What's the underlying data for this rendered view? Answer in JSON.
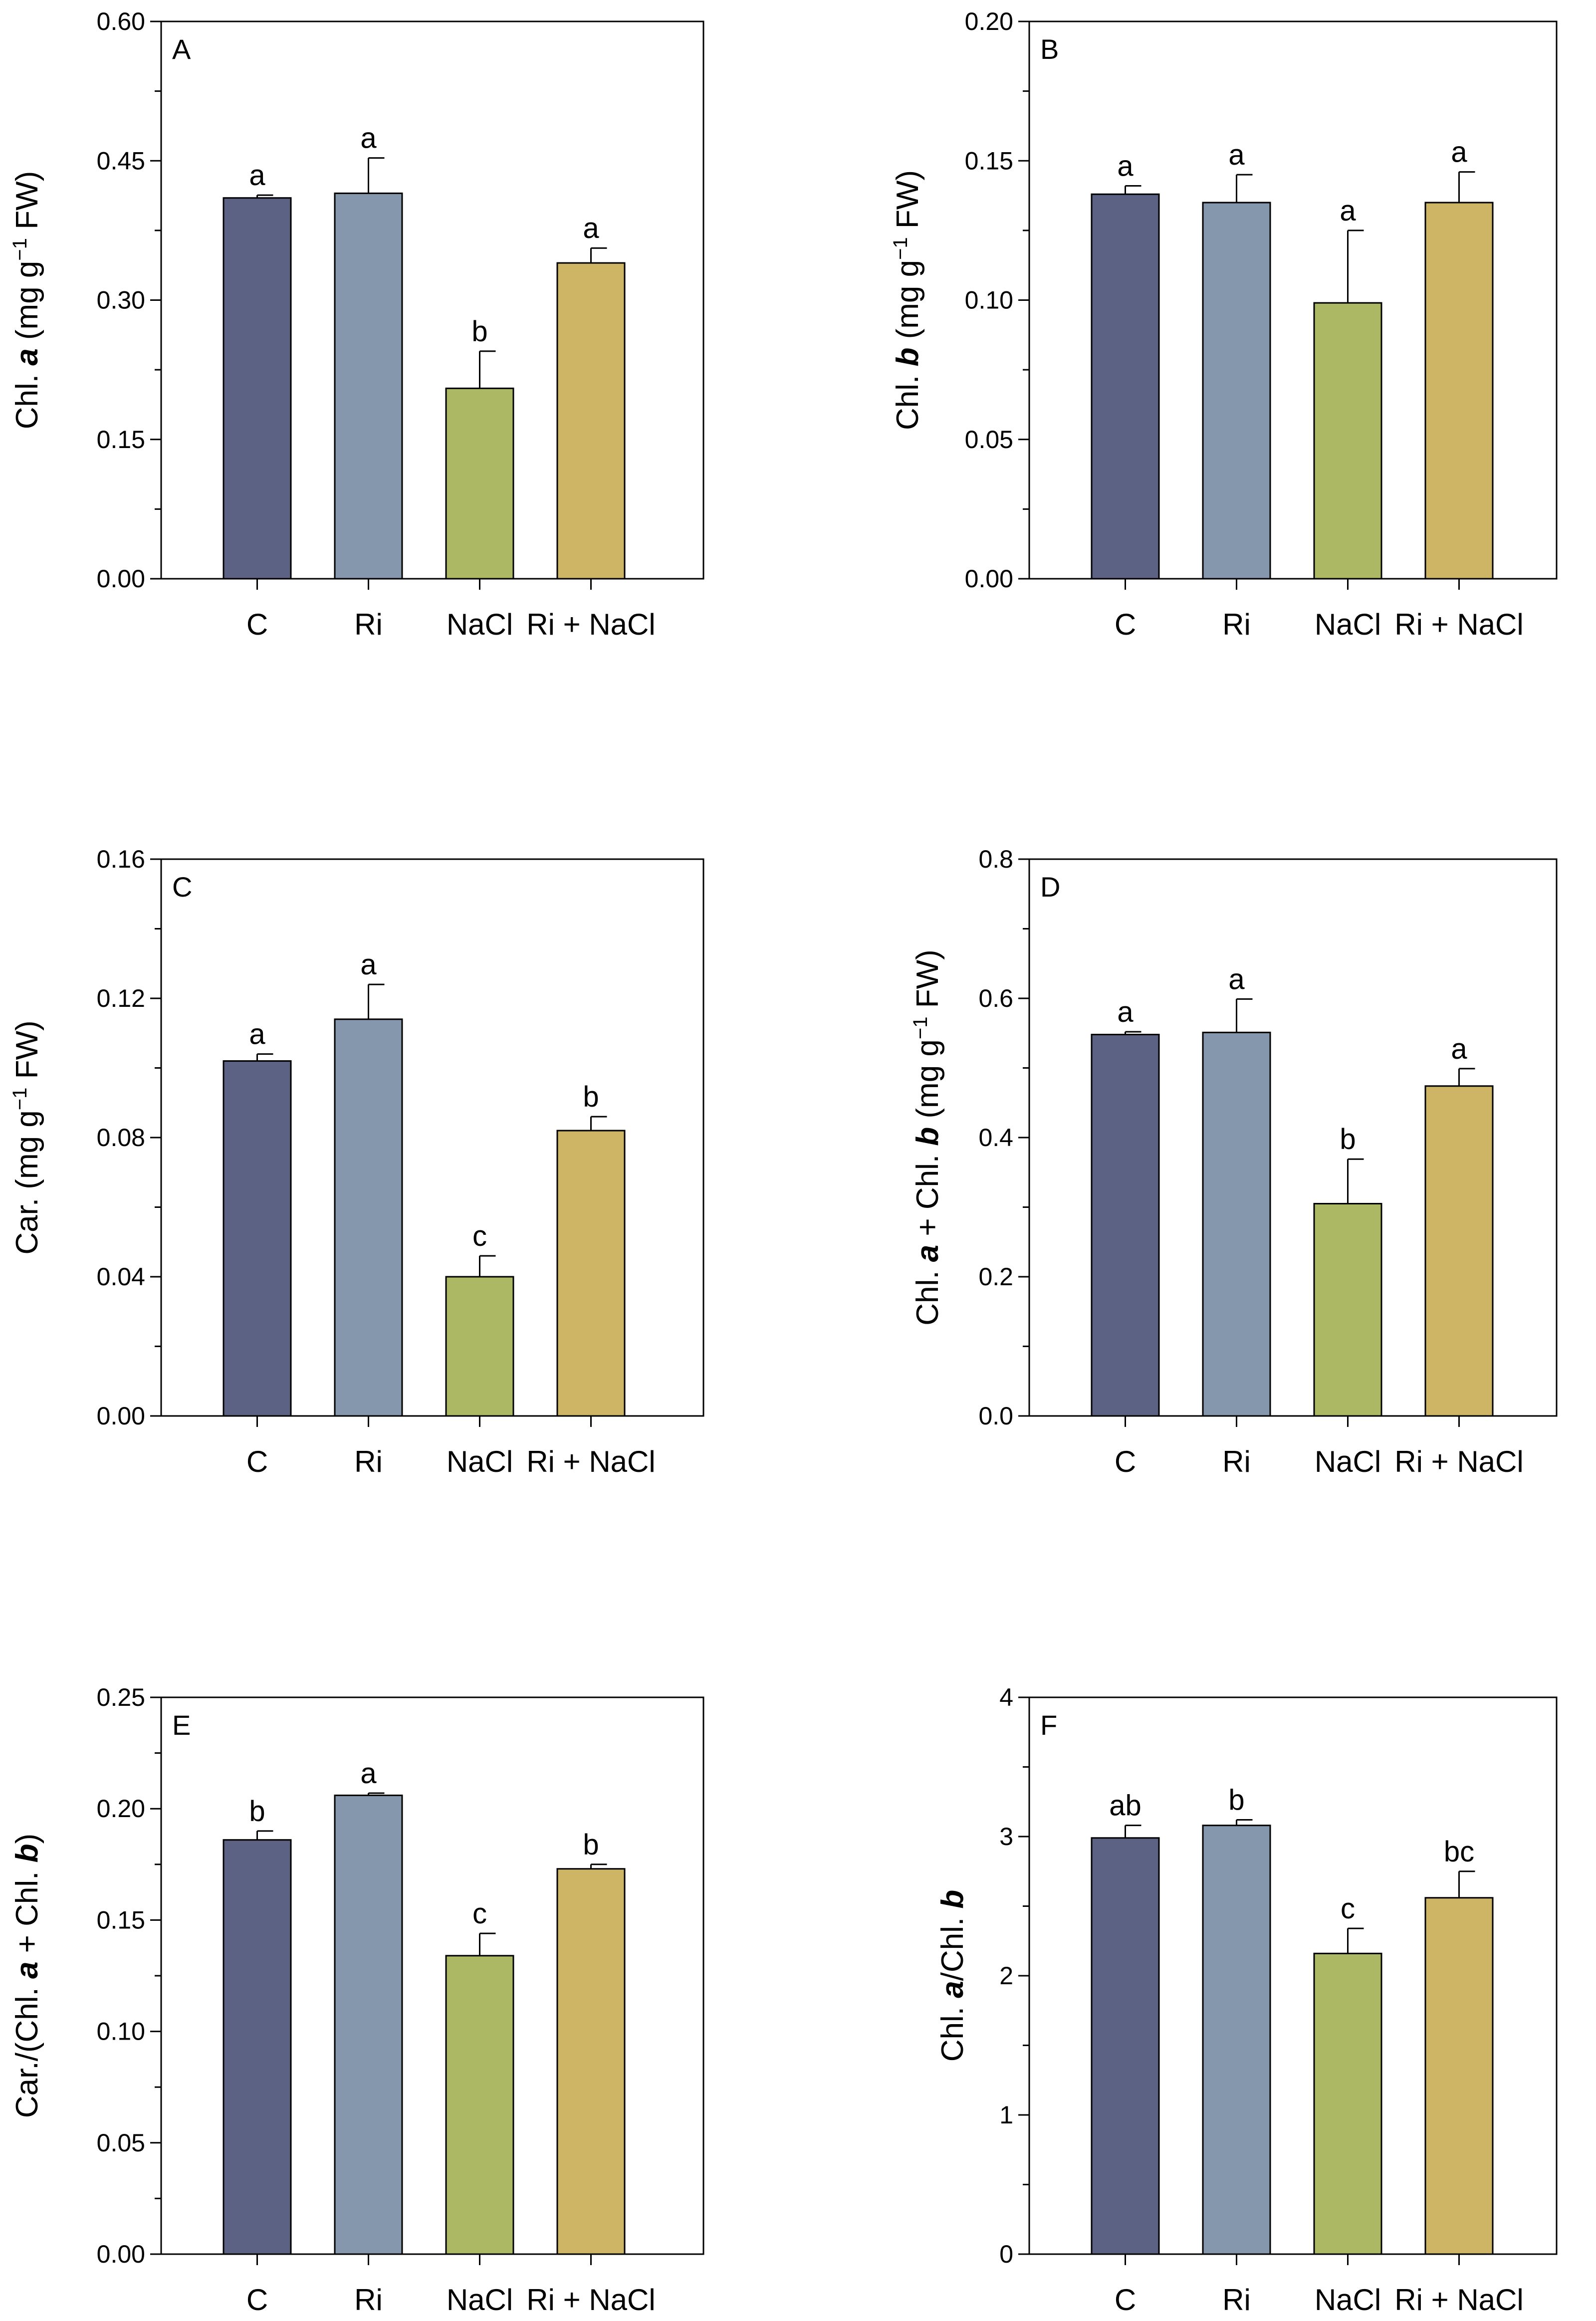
{
  "chart_data": [
    {
      "type": "bar",
      "panel_label": "A",
      "ylabel": [
        {
          "t": "Chl. "
        },
        {
          "t": "a",
          "b": true,
          "i": true
        },
        {
          "t": " (mg g"
        },
        {
          "t": "−1",
          "sup": true
        },
        {
          "t": " FW)"
        }
      ],
      "ylim": [
        0,
        0.6
      ],
      "yticks": [
        0.0,
        0.15,
        0.3,
        0.45,
        0.6
      ],
      "ytick_labels": [
        "0.00",
        "0.15",
        "0.30",
        "0.45",
        "0.60"
      ],
      "categories": [
        "C",
        "Ri",
        "NaCl",
        "Ri + NaCl"
      ],
      "values": [
        0.41,
        0.415,
        0.205,
        0.34
      ],
      "errors": [
        0.003,
        0.038,
        0.04,
        0.016
      ],
      "letters": [
        "a",
        "a",
        "b",
        "a"
      ]
    },
    {
      "type": "bar",
      "panel_label": "B",
      "ylabel": [
        {
          "t": "Chl. "
        },
        {
          "t": "b",
          "b": true,
          "i": true
        },
        {
          "t": " (mg g"
        },
        {
          "t": "−1",
          "sup": true
        },
        {
          "t": " FW)"
        }
      ],
      "ylim": [
        0,
        0.2
      ],
      "yticks": [
        0.0,
        0.05,
        0.1,
        0.15,
        0.2
      ],
      "ytick_labels": [
        "0.00",
        "0.05",
        "0.10",
        "0.15",
        "0.20"
      ],
      "categories": [
        "C",
        "Ri",
        "NaCl",
        "Ri + NaCl"
      ],
      "values": [
        0.138,
        0.135,
        0.099,
        0.135
      ],
      "errors": [
        0.003,
        0.01,
        0.026,
        0.011
      ],
      "letters": [
        "a",
        "a",
        "a",
        "a"
      ]
    },
    {
      "type": "bar",
      "panel_label": "C",
      "ylabel": [
        {
          "t": "Car. (mg g"
        },
        {
          "t": "−1",
          "sup": true
        },
        {
          "t": " FW)"
        }
      ],
      "ylim": [
        0,
        0.16
      ],
      "yticks": [
        0.0,
        0.04,
        0.08,
        0.12,
        0.16
      ],
      "ytick_labels": [
        "0.00",
        "0.04",
        "0.08",
        "0.12",
        "0.16"
      ],
      "categories": [
        "C",
        "Ri",
        "NaCl",
        "Ri + NaCl"
      ],
      "values": [
        0.102,
        0.114,
        0.04,
        0.082
      ],
      "errors": [
        0.002,
        0.01,
        0.006,
        0.004
      ],
      "letters": [
        "a",
        "a",
        "c",
        "b"
      ]
    },
    {
      "type": "bar",
      "panel_label": "D",
      "ylabel": [
        {
          "t": "Chl. "
        },
        {
          "t": "a",
          "b": true,
          "i": true
        },
        {
          "t": " + Chl. "
        },
        {
          "t": "b",
          "b": true,
          "i": true
        },
        {
          "t": " (mg g"
        },
        {
          "t": "−1",
          "sup": true
        },
        {
          "t": " FW)"
        }
      ],
      "ylim": [
        0,
        0.8
      ],
      "yticks": [
        0.0,
        0.2,
        0.4,
        0.6,
        0.8
      ],
      "ytick_labels": [
        "0.0",
        "0.2",
        "0.4",
        "0.6",
        "0.8"
      ],
      "categories": [
        "C",
        "Ri",
        "NaCl",
        "Ri + NaCl"
      ],
      "values": [
        0.548,
        0.551,
        0.305,
        0.474
      ],
      "errors": [
        0.004,
        0.048,
        0.064,
        0.025
      ],
      "letters": [
        "a",
        "a",
        "b",
        "a"
      ]
    },
    {
      "type": "bar",
      "panel_label": "E",
      "ylabel": [
        {
          "t": "Car./(Chl. "
        },
        {
          "t": "a",
          "b": true,
          "i": true
        },
        {
          "t": " + Chl. "
        },
        {
          "t": "b",
          "b": true,
          "i": true
        },
        {
          "t": ")"
        }
      ],
      "ylim": [
        0,
        0.25
      ],
      "yticks": [
        0.0,
        0.05,
        0.1,
        0.15,
        0.2,
        0.25
      ],
      "ytick_labels": [
        "0.00",
        "0.05",
        "0.10",
        "0.15",
        "0.20",
        "0.25"
      ],
      "categories": [
        "C",
        "Ri",
        "NaCl",
        "Ri + NaCl"
      ],
      "values": [
        0.186,
        0.206,
        0.134,
        0.173
      ],
      "errors": [
        0.004,
        0.001,
        0.01,
        0.002
      ],
      "letters": [
        "b",
        "a",
        "c",
        "b"
      ]
    },
    {
      "type": "bar",
      "panel_label": "F",
      "ylabel": [
        {
          "t": "Chl. "
        },
        {
          "t": "a",
          "b": true,
          "i": true
        },
        {
          "t": "/Chl. "
        },
        {
          "t": "b",
          "b": true,
          "i": true
        }
      ],
      "ylim": [
        0,
        4
      ],
      "yticks": [
        0,
        1,
        2,
        3,
        4
      ],
      "ytick_labels": [
        "0",
        "1",
        "2",
        "3",
        "4"
      ],
      "categories": [
        "C",
        "Ri",
        "NaCl",
        "Ri + NaCl"
      ],
      "values": [
        2.99,
        3.08,
        2.16,
        2.56
      ],
      "errors": [
        0.09,
        0.04,
        0.18,
        0.19
      ],
      "letters": [
        "ab",
        "b",
        "c",
        "bc"
      ]
    }
  ],
  "colors": {
    "bars": [
      "#5b6283",
      "#8597ad",
      "#adb865",
      "#cdb565"
    ],
    "axis": "#000000",
    "background": "#ffffff"
  }
}
